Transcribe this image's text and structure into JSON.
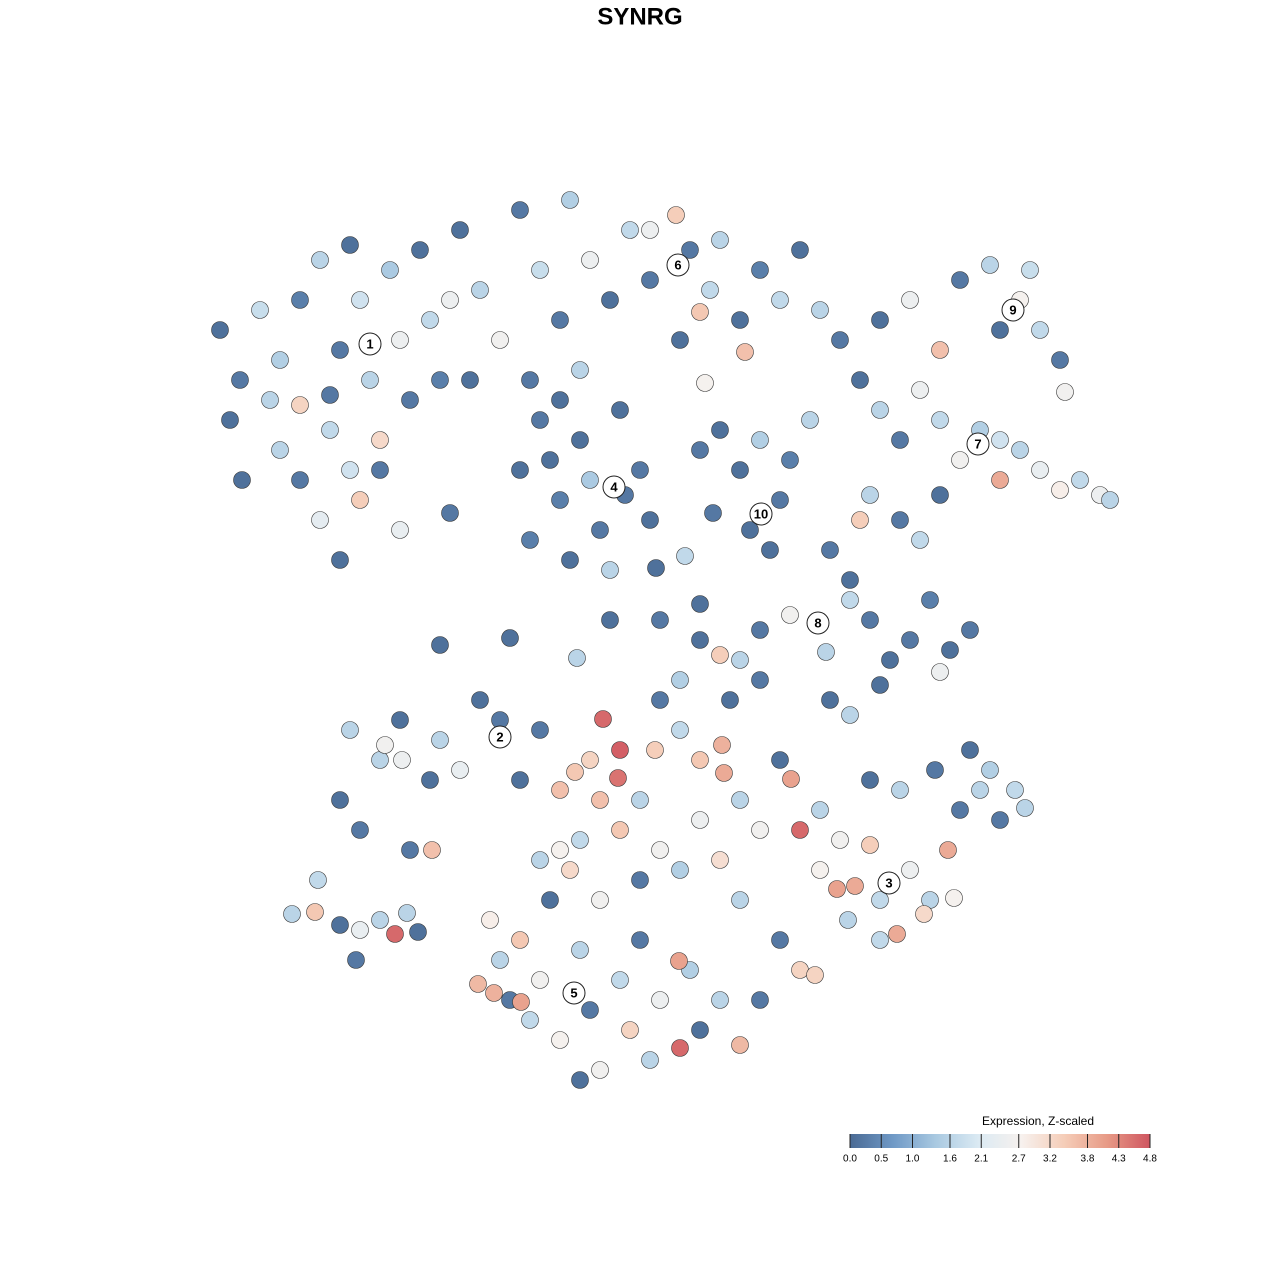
{
  "chart_data": {
    "type": "scatter",
    "title": "SYNRG",
    "colorbar_title": "Expression, Z-scaled",
    "clim": [
      0,
      4.8
    ],
    "colors": [
      "#4a6a94",
      "#6f99c6",
      "#a9c9e1",
      "#dbeaf3",
      "#f7f1ee",
      "#f5cdb8",
      "#e79a86",
      "#cf5560"
    ],
    "colorbar_ticks": [
      {
        "value": 0,
        "label": "0.0"
      },
      0.5,
      {
        "value": 1,
        "label": "1.0"
      },
      1.6,
      2.1,
      2.7,
      3.2,
      3.8,
      4.3,
      4.8
    ],
    "xlim": [
      -45,
      50
    ],
    "ylim": [
      -47,
      47
    ],
    "x": [
      -42,
      -40,
      -38,
      -36,
      -34,
      -34,
      -32,
      -31,
      -30,
      -29,
      -28,
      -27,
      -26,
      -25,
      -24,
      -23,
      -22,
      -21,
      -20,
      -34,
      -32,
      -30,
      -28,
      -26,
      -24,
      -36,
      -29,
      -41,
      -37,
      -31,
      -18,
      -16,
      -14,
      -12,
      -10,
      -8,
      -7,
      -5,
      -3,
      -1,
      1,
      -17,
      -11,
      -6,
      -19,
      3.6,
      5,
      7,
      8,
      10,
      10.5,
      12,
      14,
      16,
      18,
      6,
      6.5,
      4,
      20,
      1,
      -12,
      -10,
      -8,
      -6,
      -4,
      -2,
      0,
      1,
      -11,
      -7,
      -3,
      -5,
      -9,
      -1.5,
      -8,
      10,
      12,
      14,
      11,
      15,
      6,
      8,
      13,
      17,
      24,
      27,
      30,
      32,
      35,
      38,
      40,
      42,
      42.5,
      36,
      39,
      22,
      24,
      26,
      28,
      30,
      32,
      34,
      36,
      38,
      40,
      42,
      44,
      46,
      47,
      36,
      23,
      26,
      22,
      28,
      30,
      19,
      21,
      23,
      25,
      27,
      29,
      31,
      33,
      30,
      24,
      15,
      12,
      8,
      10,
      6,
      4,
      2,
      18.6,
      21,
      -20,
      -13,
      -6.3,
      4.5,
      1.6,
      6,
      -3,
      -19,
      -39.8,
      7.3,
      -30,
      -28,
      -26,
      -24,
      -23,
      -21,
      -20,
      -18,
      -16,
      -14,
      -12,
      -29,
      -25.5,
      -20.8,
      -10,
      -23.8,
      -15,
      -14,
      -13,
      -12,
      -11,
      -10,
      -9,
      -8,
      -6,
      -5,
      -4,
      -2,
      -1,
      0,
      1,
      2,
      4,
      5,
      6,
      8,
      10,
      12,
      -16.2,
      -14.6,
      -11.9,
      -6,
      -10,
      -4,
      3.9,
      -7,
      -8,
      -6.5,
      -5,
      -3.7,
      -2,
      -2.2,
      0,
      1.5,
      2,
      4,
      6,
      8.2,
      8.4,
      10,
      12,
      14,
      15.1,
      16,
      18,
      20,
      21.5,
      19.7,
      23,
      24,
      25.7,
      27,
      29,
      30.8,
      32,
      34,
      36,
      37.5,
      31.4,
      16,
      14,
      10,
      8,
      6,
      4,
      2,
      0,
      -2,
      -4,
      -6,
      -8,
      9,
      12,
      19,
      21,
      33,
      35,
      38.5,
      23,
      26,
      29.5,
      18,
      20.8,
      24,
      28.4,
      17.5,
      -34.8,
      -32.5,
      -32.2,
      -30,
      -28.4,
      -26,
      -24.5,
      -23.3,
      -22.2,
      -28
    ],
    "y": [
      31,
      26,
      33,
      28,
      34,
      23.5,
      38,
      21,
      29,
      39.5,
      34,
      26,
      20,
      37,
      30,
      24,
      39,
      32,
      26,
      16,
      12,
      8,
      14,
      17,
      11,
      19,
      17,
      22,
      24,
      24.5,
      41,
      35,
      30,
      43,
      37,
      32,
      44,
      38,
      34,
      41,
      36,
      26,
      26,
      27,
      34,
      42.5,
      39,
      35,
      40,
      32,
      28.8,
      37,
      34,
      39,
      33,
      32.8,
      25.7,
      30,
      30,
      41,
      17,
      22,
      14,
      20,
      11,
      23,
      17,
      12,
      10,
      8,
      7,
      16,
      18,
      14.5,
      24,
      17,
      20,
      14,
      11,
      18,
      19,
      21,
      9,
      22,
      32,
      34,
      29,
      36,
      37.5,
      34,
      31,
      28,
      24.8,
      31,
      37,
      26,
      23,
      20,
      25,
      22,
      18,
      21,
      16,
      19,
      17,
      15,
      16,
      14.5,
      14,
      20,
      14.5,
      12,
      12,
      10,
      14.5,
      9,
      6,
      2,
      -2,
      0,
      4,
      -1,
      1,
      -3.2,
      -4.5,
      2.5,
      1,
      -1.5,
      -2,
      0,
      -4,
      2,
      -1.2,
      4,
      -0.5,
      0.2,
      -1.8,
      8.4,
      7.2,
      3.6,
      2,
      12.7,
      16,
      12.7,
      -16,
      -19,
      -12,
      -8,
      -21,
      -14,
      -10,
      -13,
      -6,
      -8,
      -14,
      -9,
      -10.5,
      -21,
      -9,
      -12,
      -28,
      -32,
      -36,
      -30,
      -38,
      -34,
      -26,
      -40,
      -31,
      -37,
      -43,
      -34,
      -39,
      -30,
      -42,
      -36,
      -40.8,
      -33,
      -39,
      -36,
      -40.5,
      -36,
      -34.4,
      -35.3,
      -36.2,
      -44,
      -22,
      -26,
      -32.1,
      -23,
      -15,
      -13.2,
      -12,
      -7.9,
      -11,
      -13.8,
      -16,
      -11,
      -6,
      -9,
      -12,
      -10.5,
      -13.3,
      -16,
      -19,
      -12,
      -13.9,
      -19,
      -17,
      -20,
      -24.6,
      -24.9,
      -20.5,
      -26,
      -29.4,
      -23,
      -26,
      -21,
      -17,
      -15,
      -18,
      -15,
      -25.8,
      -33,
      -30,
      -26,
      -22,
      -18,
      -23,
      -21,
      -24,
      -19,
      -16,
      -20,
      -21,
      -6,
      -4,
      -6,
      -7.5,
      -11,
      -13,
      -16.8,
      -14,
      -15,
      -13,
      -23,
      -28,
      -30,
      -27.4,
      -33.5,
      -27.4,
      -27.2,
      -24,
      -28.5,
      -32,
      -28,
      -29.4,
      -27.3,
      -29.2,
      -29
    ],
    "values": [
      0.1,
      0.2,
      1.8,
      1.5,
      0.3,
      3.3,
      1.6,
      1.7,
      0.2,
      0.1,
      1.9,
      1.6,
      3.2,
      1.4,
      2.5,
      0.2,
      0.1,
      1.7,
      0.3,
      0.2,
      2.3,
      0.1,
      3.4,
      0.2,
      2.4,
      1.6,
      1.9,
      0.1,
      1.6,
      0.2,
      0.1,
      1.6,
      2.6,
      0.2,
      1.8,
      0.2,
      1.5,
      2.5,
      0.1,
      1.7,
      0.2,
      0.1,
      0.2,
      1.6,
      2.5,
      3.4,
      0.2,
      1.7,
      1.6,
      0.1,
      3.6,
      0.3,
      1.7,
      0.1,
      1.6,
      3.5,
      2.7,
      0.1,
      0.2,
      2.5,
      0.1,
      0.2,
      0.3,
      0.1,
      0.2,
      0.1,
      0.2,
      0.1,
      0.3,
      0.1,
      1.6,
      1.4,
      0.1,
      0.2,
      0.1,
      0.1,
      1.5,
      0.2,
      0.1,
      0.3,
      0.2,
      0.1,
      0.1,
      1.6,
      0.1,
      2.5,
      3.6,
      0.2,
      1.6,
      2.7,
      1.7,
      0.2,
      2.6,
      0.1,
      1.8,
      0.1,
      1.6,
      0.2,
      2.5,
      1.7,
      2.6,
      1.5,
      3.9,
      1.6,
      2.4,
      2.8,
      1.7,
      2.5,
      1.6,
      1.9,
      1.6,
      0.2,
      3.4,
      1.7,
      0.1,
      0.2,
      0.1,
      0.2,
      0.1,
      0.2,
      0.3,
      0.1,
      0.2,
      2.5,
      0.1,
      2.6,
      0.2,
      3.4,
      1.6,
      0.1,
      1.5,
      0.2,
      1.6,
      1.7,
      0.1,
      0.1,
      1.6,
      1.7,
      0.1,
      0.1,
      0.1,
      0.2,
      0.1,
      0.2,
      0.1,
      0.2,
      1.6,
      0.1,
      0.2,
      0.1,
      1.6,
      2.4,
      0.1,
      0.2,
      0.1,
      1.6,
      2.6,
      3.6,
      0.2,
      2.5,
      2.8,
      1.6,
      0.2,
      3.5,
      1.7,
      2.6,
      0.1,
      2.7,
      1.6,
      0.2,
      2.6,
      1.7,
      3.3,
      0.2,
      1.6,
      2.5,
      4.6,
      1.5,
      0.1,
      1.6,
      3.7,
      0.2,
      3.7,
      3.8,
      4.0,
      0.1,
      1.6,
      2.6,
      4.0,
      3.2,
      3.6,
      3.5,
      3.3,
      4.6,
      4.7,
      4.5,
      1.6,
      3.4,
      0.2,
      1.7,
      3.5,
      3.8,
      3.9,
      1.6,
      2.6,
      0.1,
      4.0,
      4.6,
      1.6,
      2.6,
      3.9,
      4.0,
      3.4,
      1.7,
      3.9,
      2.5,
      1.6,
      3.9,
      0.2,
      1.6,
      0.2,
      1.7,
      2.7,
      3.3,
      0.2,
      1.6,
      3.1,
      2.5,
      1.5,
      2.6,
      0.2,
      3.5,
      3.6,
      1.7,
      2.7,
      0.1,
      0.2,
      0.1,
      1.6,
      0.1,
      1.5,
      1.6,
      0.1,
      1.6,
      0.2,
      2.7,
      1.6,
      1.7,
      3.2,
      3.3,
      1.6,
      3.5,
      1.7,
      0.1,
      0.2,
      1.6,
      4.6,
      1.6,
      0.1,
      2.4
    ],
    "cluster_labels": [
      {
        "label": "1",
        "x": -27,
        "y": 29.6
      },
      {
        "label": "2",
        "x": -14,
        "y": -9.7
      },
      {
        "label": "3",
        "x": 24.9,
        "y": -24.3
      },
      {
        "label": "4",
        "x": -2.6,
        "y": 15.3
      },
      {
        "label": "5",
        "x": -6.6,
        "y": -35.3
      },
      {
        "label": "6",
        "x": 3.8,
        "y": 37.5
      },
      {
        "label": "7",
        "x": 33.8,
        "y": 19.6
      },
      {
        "label": "8",
        "x": 17.8,
        "y": 1.7
      },
      {
        "label": "9",
        "x": 37.3,
        "y": 33
      },
      {
        "label": "10",
        "x": 12.1,
        "y": 12.6
      }
    ]
  }
}
